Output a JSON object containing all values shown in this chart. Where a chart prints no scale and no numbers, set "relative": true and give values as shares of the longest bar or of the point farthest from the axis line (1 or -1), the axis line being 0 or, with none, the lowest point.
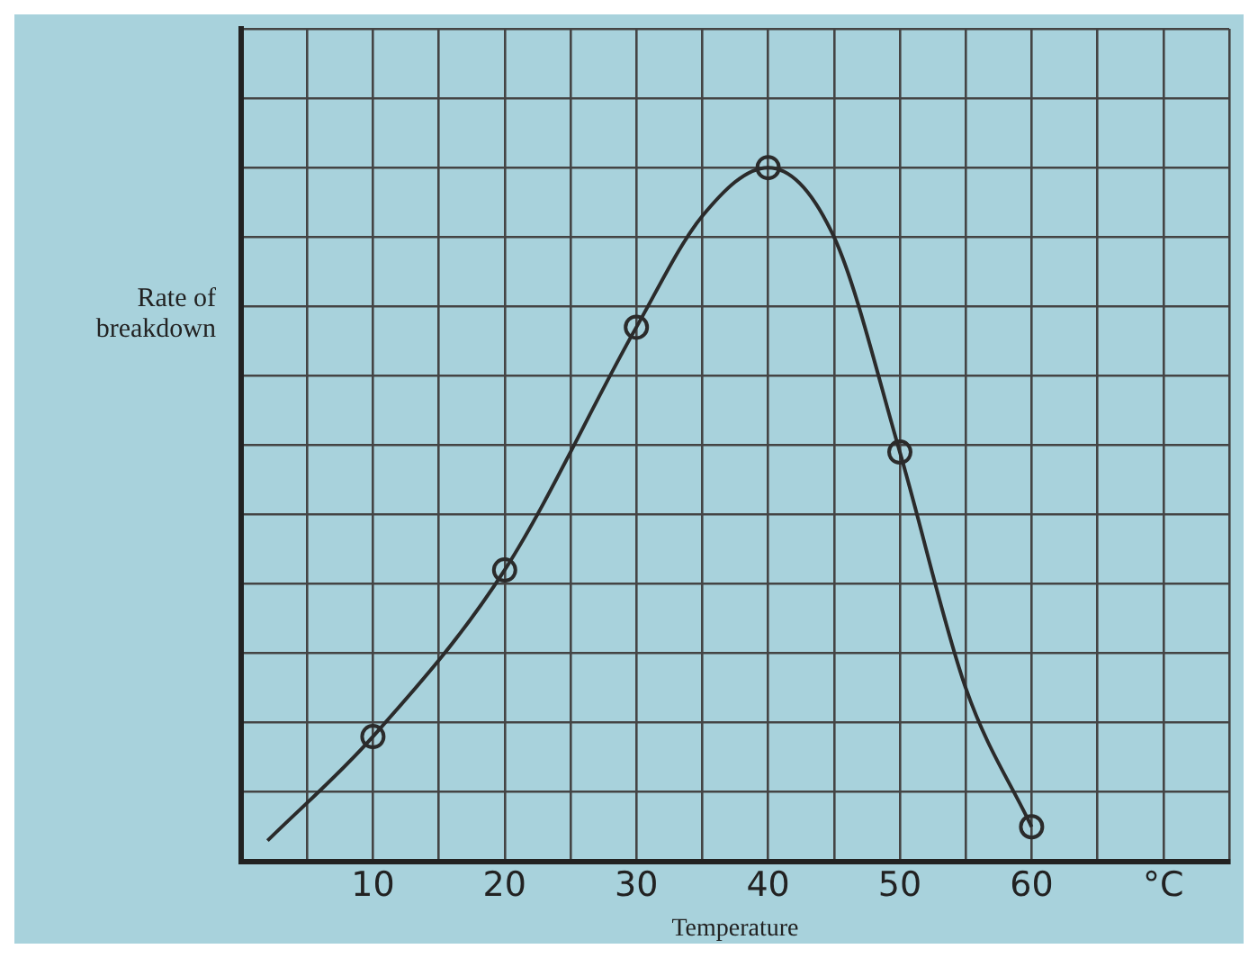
{
  "chart_data": {
    "type": "line",
    "xlabel": "Temperature",
    "ylabel": "Rate of breakdown",
    "relative": true,
    "grid": true,
    "legend": false,
    "xlim": [
      0,
      75
    ],
    "xticks": [
      {
        "value": 0,
        "label": null
      },
      {
        "value": 5,
        "label": null
      },
      10,
      {
        "value": 15,
        "label": null
      },
      20,
      {
        "value": 25,
        "label": null
      },
      30,
      {
        "value": 35,
        "label": null
      },
      40,
      {
        "value": 45,
        "label": null
      },
      50,
      {
        "value": 55,
        "label": null
      },
      60,
      {
        "value": 65,
        "label": null
      },
      {
        "value": 70,
        "label": "°C"
      },
      {
        "value": 75,
        "label": null
      }
    ],
    "series": [
      {
        "type": "line",
        "color": "#2b2b2b",
        "marker": "none",
        "x": [
          2,
          10,
          20,
          30,
          35,
          40,
          45,
          50,
          55,
          60
        ],
        "values": [
          0.03,
          0.18,
          0.42,
          0.77,
          0.93,
          1,
          0.9,
          0.59,
          0.25,
          0.05
        ]
      },
      {
        "type": "scatter",
        "color": "#2b2b2b",
        "marker": "circle",
        "x": [
          10,
          20,
          30,
          40,
          50,
          60
        ],
        "values": [
          0.18,
          0.42,
          0.77,
          1,
          0.59,
          0.05
        ]
      }
    ]
  }
}
